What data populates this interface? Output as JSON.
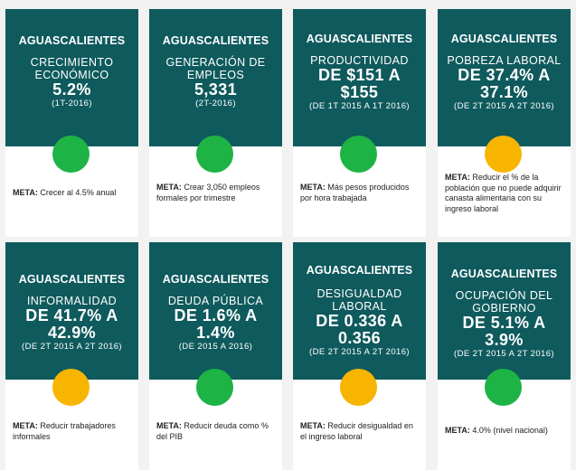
{
  "meta_prefix": "META:",
  "cards": [
    {
      "region": "AGUASCALIENTES",
      "label": "CRECIMIENTO ECONÓMICO",
      "value": "5.2%",
      "period": "(1T-2016)",
      "status": "green",
      "meta": "Crecer al 4.5% anual"
    },
    {
      "region": "AGUASCALIENTES",
      "label": "GENERACIÓN DE EMPLEOS",
      "value": "5,331",
      "period": "(2T-2016)",
      "status": "green",
      "meta": "Crear 3,050 empleos formales por trimestre"
    },
    {
      "region": "AGUASCALIENTES",
      "label": "PRODUCTIVIDAD",
      "value": "DE $151 A $155",
      "period": "(De 1T 2015 a 1T 2016)",
      "status": "green",
      "meta": "Más pesos producidos por hora trabajada"
    },
    {
      "region": "AGUASCALIENTES",
      "label": "POBREZA LABORAL",
      "value": "DE 37.4% A 37.1%",
      "period": "(De 2T 2015 a 2T 2016)",
      "status": "yellow",
      "meta": "Reducir el % de la población que no puede adquirir canasta alimentaria con su ingreso laboral"
    },
    {
      "region": "AGUASCALIENTES",
      "label": "INFORMALIDAD",
      "value": "DE 41.7% A 42.9%",
      "period": "(De 2T 2015 a 2T 2016)",
      "status": "yellow",
      "meta": "Reducir trabajadores informales"
    },
    {
      "region": "AGUASCALIENTES",
      "label": "DEUDA PÚBLICA",
      "value": "DE 1.6% A 1.4%",
      "period": "(De 2015 a 2016)",
      "status": "green",
      "meta": "Reducir deuda como % del PIB"
    },
    {
      "region": "AGUASCALIENTES",
      "label": "DESIGUALDAD LABORAL",
      "value": "DE 0.336 A 0.356",
      "period": "(De 2T 2015 a 2T 2016)",
      "status": "yellow",
      "meta": "Reducir desigualdad en el ingreso laboral"
    },
    {
      "region": "AGUASCALIENTES",
      "label": "OCUPACIÓN DEL GOBIERNO",
      "value": "DE 5.1% A 3.9%",
      "period": "(De 2T 2015 a 2T 2016)",
      "status": "green",
      "meta": "4.0% (nivel nacional)"
    }
  ],
  "colors": {
    "header_bg": "#0f5a5d",
    "green": "#1db345",
    "yellow": "#f7b500"
  }
}
